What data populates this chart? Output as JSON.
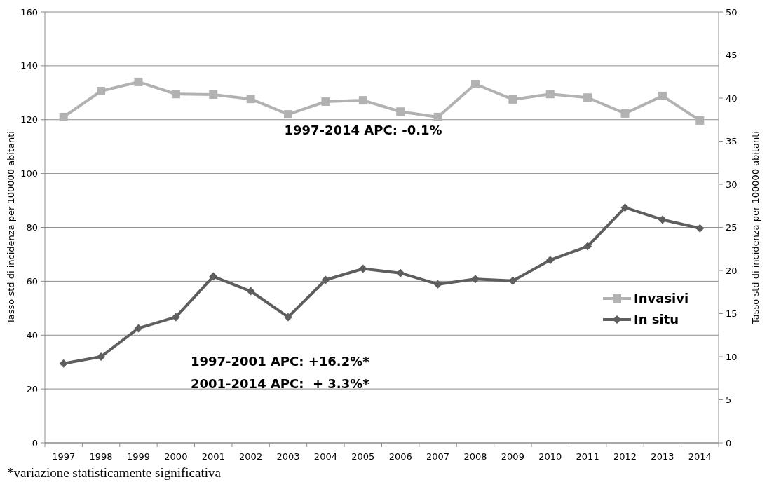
{
  "chart_data": {
    "type": "line",
    "categories": [
      "1997",
      "1998",
      "1999",
      "2000",
      "2001",
      "2002",
      "2003",
      "2004",
      "2005",
      "2006",
      "2007",
      "2008",
      "2009",
      "2010",
      "2011",
      "2012",
      "2013",
      "2014"
    ],
    "series": [
      {
        "name": "Invasivi",
        "color": "#b2b2b2",
        "marker": "square",
        "values": [
          121,
          130.6,
          134,
          129.5,
          129.3,
          127.7,
          122,
          126.7,
          127.2,
          123,
          121,
          133.2,
          127.5,
          129.5,
          128.2,
          122.3,
          128.8,
          119.7
        ]
      },
      {
        "name": "In situ",
        "color": "#5e5e5e",
        "marker": "diamond",
        "axis": "y2",
        "values": [
          9.2,
          10,
          13.3,
          14.6,
          19.3,
          17.6,
          14.6,
          18.9,
          20.2,
          19.7,
          18.4,
          19,
          18.8,
          21.2,
          22.8,
          27.3,
          25.9,
          24.9
        ]
      }
    ],
    "ylim": [
      0,
      160
    ],
    "yticks": [
      0,
      20,
      40,
      60,
      80,
      100,
      120,
      140,
      160
    ],
    "y2lim": [
      0,
      50
    ],
    "y2ticks": [
      0,
      5,
      10,
      15,
      20,
      25,
      30,
      35,
      40,
      45,
      50
    ],
    "ylabel": "Tasso std di incidenza per 100000  abitanti",
    "y2label": "Tasso std di incidenza per 100000  abitanti",
    "grid": "y",
    "legend": "right",
    "line_style": "solid",
    "annotations": [
      "1997-2014 APC: -0.1%",
      "1997-2001 APC: +16.2%*",
      "2001-2014 APC:  + 3.3%*",
      "*variazione statisticamente significativa"
    ]
  }
}
